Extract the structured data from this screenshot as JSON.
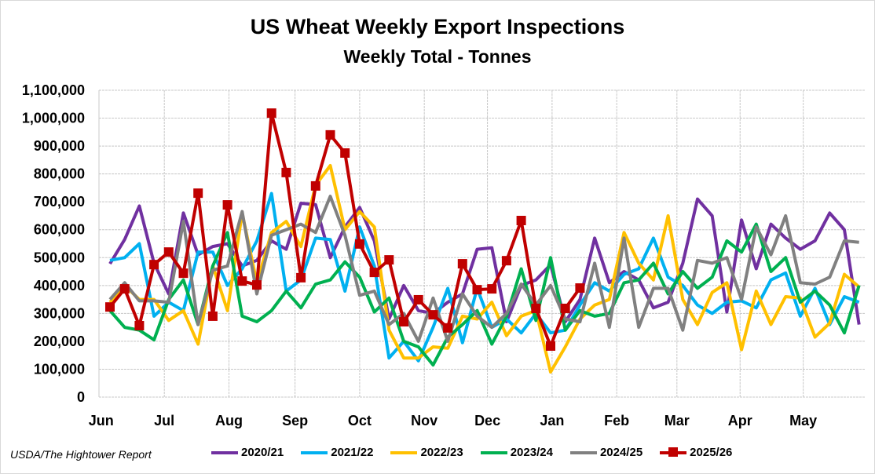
{
  "chart_data": {
    "type": "line",
    "title": "US Wheat Weekly Export Inspections",
    "subtitle": "Weekly Total - Tonnes",
    "source": "USDA/The Hightower Report",
    "xlabel": "",
    "ylabel": "",
    "ylim": [
      0,
      1100000
    ],
    "y_ticks": [
      "0",
      "100,000",
      "200,000",
      "300,000",
      "400,000",
      "500,000",
      "600,000",
      "700,000",
      "800,000",
      "900,000",
      "1,000,000",
      "1,100,000"
    ],
    "x_unit": "week index (0 = first week of June)",
    "x_ticks": [
      {
        "label": "Jun",
        "week": -0.6
      },
      {
        "label": "Jul",
        "week": 3.7
      },
      {
        "label": "Aug",
        "week": 8.1
      },
      {
        "label": "Sep",
        "week": 12.6
      },
      {
        "label": "Oct",
        "week": 17.0
      },
      {
        "label": "Nov",
        "week": 21.4
      },
      {
        "label": "Dec",
        "week": 25.7
      },
      {
        "label": "Jan",
        "week": 30.1
      },
      {
        "label": "Feb",
        "week": 34.5
      },
      {
        "label": "Mar",
        "week": 38.6
      },
      {
        "label": "Apr",
        "week": 42.9
      },
      {
        "label": "May",
        "week": 47.2
      }
    ],
    "grid": true,
    "legend_position": "bottom",
    "series": [
      {
        "name": "2020/21",
        "color": "#7030A0",
        "marker": false,
        "values": [
          478,
          565,
          685,
          480,
          370,
          660,
          510,
          540,
          550,
          470,
          490,
          560,
          530,
          695,
          690,
          500,
          610,
          680,
          560,
          280,
          400,
          310,
          300,
          340,
          370,
          530,
          535,
          270,
          400,
          420,
          475,
          270,
          350,
          570,
          410,
          450,
          420,
          320,
          340,
          480,
          710,
          650,
          305,
          635,
          460,
          620,
          570,
          530,
          560,
          660,
          600,
          260
        ]
      },
      {
        "name": "2021/22",
        "color": "#00B0F0",
        "marker": false,
        "values": [
          490,
          500,
          550,
          290,
          340,
          310,
          520,
          520,
          400,
          460,
          560,
          730,
          380,
          420,
          570,
          565,
          380,
          610,
          470,
          140,
          200,
          130,
          250,
          390,
          195,
          390,
          250,
          280,
          230,
          300,
          230,
          240,
          330,
          410,
          380,
          440,
          460,
          570,
          430,
          400,
          330,
          300,
          340,
          345,
          320,
          420,
          445,
          290,
          390,
          260,
          360,
          340
        ]
      },
      {
        "name": "2022/23",
        "color": "#FFC000",
        "marker": false,
        "values": [
          340,
          400,
          350,
          350,
          275,
          310,
          190,
          470,
          310,
          660,
          410,
          590,
          630,
          540,
          760,
          830,
          600,
          665,
          610,
          240,
          140,
          140,
          180,
          175,
          290,
          280,
          340,
          220,
          290,
          310,
          90,
          180,
          280,
          330,
          350,
          590,
          480,
          420,
          650,
          350,
          260,
          375,
          410,
          170,
          380,
          260,
          360,
          355,
          215,
          265,
          440,
          395
        ]
      },
      {
        "name": "2023/24",
        "color": "#00B050",
        "marker": false,
        "values": [
          310,
          250,
          240,
          205,
          350,
          420,
          260,
          470,
          590,
          290,
          270,
          310,
          380,
          320,
          405,
          420,
          485,
          430,
          305,
          355,
          200,
          180,
          115,
          215,
          260,
          310,
          190,
          290,
          460,
          275,
          500,
          240,
          310,
          290,
          300,
          410,
          420,
          480,
          370,
          450,
          390,
          430,
          560,
          520,
          620,
          450,
          500,
          340,
          380,
          330,
          230,
          400
        ]
      },
      {
        "name": "2024/25",
        "color": "#808080",
        "marker": false,
        "values": [
          350,
          410,
          345,
          345,
          340,
          630,
          260,
          455,
          470,
          665,
          370,
          580,
          600,
          620,
          590,
          720,
          580,
          365,
          380,
          260,
          300,
          200,
          355,
          200,
          370,
          290,
          250,
          300,
          405,
          330,
          400,
          280,
          270,
          480,
          250,
          570,
          250,
          390,
          390,
          240,
          490,
          480,
          500,
          350,
          610,
          510,
          650,
          410,
          405,
          430,
          560,
          555
        ]
      },
      {
        "name": "2025/26",
        "color": "#C00000",
        "marker": true,
        "values": [
          323,
          388,
          256,
          475,
          520,
          444,
          731,
          290,
          689,
          416,
          402,
          1018,
          805,
          428,
          757,
          940,
          875,
          549,
          447,
          492,
          270,
          349,
          295,
          248,
          478,
          385,
          388,
          489,
          633,
          318,
          183,
          318,
          391
        ]
      }
    ],
    "value_multiplier": 1000
  }
}
